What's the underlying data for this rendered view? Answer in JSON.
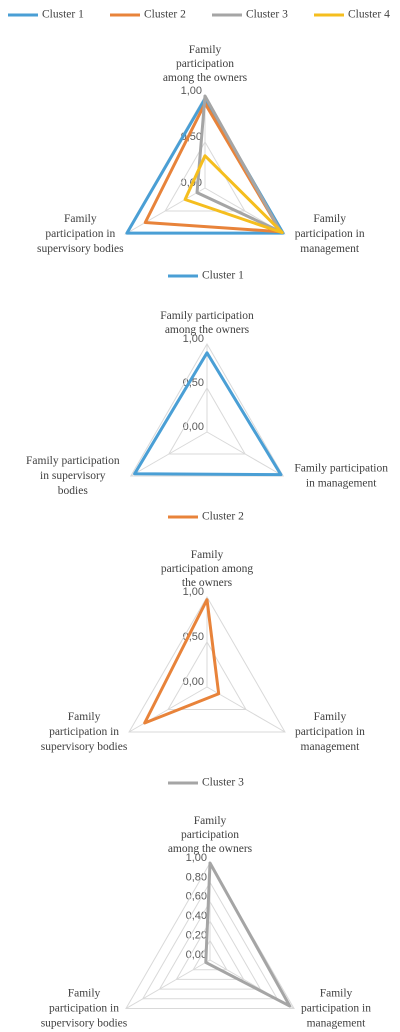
{
  "chart_data": [
    {
      "type": "radar",
      "axes": [
        "Family participation among the owners",
        "Family participation in management",
        "Family participation in supervisory bodies"
      ],
      "series": [
        {
          "name": "Cluster 1",
          "color": "#4a9fd5",
          "values": [
            0.97,
            0.98,
            0.98
          ]
        },
        {
          "name": "Cluster 2",
          "color": "#e8833a",
          "values": [
            0.92,
            0.95,
            0.75
          ]
        },
        {
          "name": "Cluster 3",
          "color": "#a5a5a5",
          "values": [
            1.0,
            0.95,
            0.1
          ]
        },
        {
          "name": "Cluster 4",
          "color": "#f5be1e",
          "values": [
            0.35,
            0.97,
            0.25
          ]
        }
      ],
      "ylim": [
        0,
        1
      ],
      "yticks": [
        {
          "value": 0,
          "label": "0,00"
        },
        {
          "value": 0.5,
          "label": "0,50"
        },
        {
          "value": 1,
          "label": "1,00"
        }
      ],
      "legend": "top"
    },
    {
      "type": "radar",
      "axes": [
        "Family participation among the owners",
        "Family participation in management",
        "Family participation in supervisory bodies"
      ],
      "series": [
        {
          "name": "Cluster 1",
          "color": "#4a9fd5",
          "values": [
            0.9,
            0.97,
            0.95
          ]
        }
      ],
      "ylim": [
        0,
        1
      ],
      "yticks": [
        {
          "value": 0,
          "label": "0,00"
        },
        {
          "value": 0.5,
          "label": "0,50"
        },
        {
          "value": 1,
          "label": "1,00"
        }
      ],
      "legend": "top"
    },
    {
      "type": "radar",
      "axes": [
        "Family participation among the owners",
        "Family participation in management",
        "Family participation in supervisory bodies"
      ],
      "series": [
        {
          "name": "Cluster 2",
          "color": "#e8833a",
          "values": [
            0.97,
            0.15,
            0.8
          ]
        }
      ],
      "ylim": [
        0,
        1
      ],
      "yticks": [
        {
          "value": 0,
          "label": "0,00"
        },
        {
          "value": 0.5,
          "label": "0,50"
        },
        {
          "value": 1,
          "label": "1,00"
        }
      ],
      "legend": "top"
    },
    {
      "type": "radar",
      "axes": [
        "Family participation among the owners",
        "Family participation in management",
        "Family participation in supervisory bodies"
      ],
      "series": [
        {
          "name": "Cluster 3",
          "color": "#a5a5a5",
          "values": [
            1.0,
            0.95,
            0.05
          ]
        }
      ],
      "ylim": [
        0,
        1
      ],
      "yticks": [
        {
          "value": 0,
          "label": "0,00"
        },
        {
          "value": 0.2,
          "label": "0,20"
        },
        {
          "value": 0.4,
          "label": "0,40"
        },
        {
          "value": 0.6,
          "label": "0,60"
        },
        {
          "value": 0.8,
          "label": "0,80"
        },
        {
          "value": 1,
          "label": "1,00"
        }
      ],
      "legend": "top"
    }
  ]
}
